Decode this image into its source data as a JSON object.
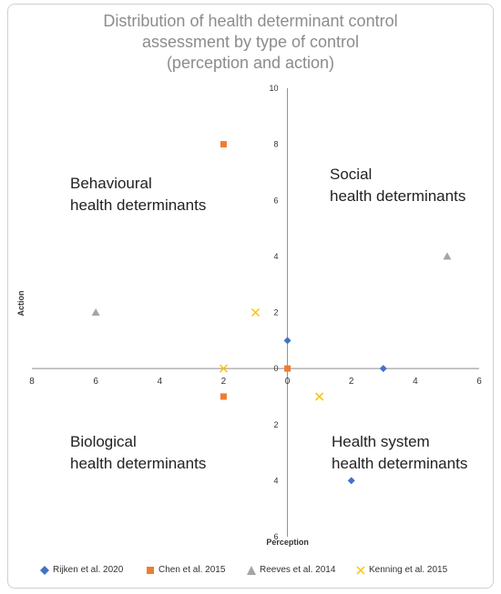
{
  "chart_data": {
    "type": "scatter",
    "title": "Distribution of health determinant control\nassessment by type of control\n(perception and action)",
    "xlabel": "Perception",
    "ylabel": "Action",
    "xlim": [
      -8,
      6
    ],
    "ylim": [
      -6,
      10
    ],
    "x_ticks": [
      -8,
      -6,
      -4,
      -2,
      0,
      2,
      4,
      6
    ],
    "x_tick_labels": [
      "8",
      "6",
      "4",
      "2",
      "0",
      "2",
      "4",
      "6"
    ],
    "y_ticks": [
      -6,
      -4,
      -2,
      0,
      2,
      4,
      6,
      8,
      10
    ],
    "y_tick_labels": [
      "6",
      "4",
      "2",
      "0",
      "2",
      "4",
      "6",
      "8",
      "10"
    ],
    "grid": false,
    "legend_position": "bottom",
    "series": [
      {
        "name": "Rijken et al. 2020",
        "marker": "diamond",
        "color": "#4472c4",
        "points": [
          [
            0,
            1
          ],
          [
            3,
            0
          ],
          [
            2,
            -4
          ]
        ]
      },
      {
        "name": "Chen et al. 2015",
        "marker": "square",
        "color": "#ed7d31",
        "points": [
          [
            -2,
            8
          ],
          [
            0,
            0
          ],
          [
            -2,
            -1
          ]
        ]
      },
      {
        "name": "Reeves et al. 2014",
        "marker": "triangle",
        "color": "#a5a5a5",
        "points": [
          [
            -6,
            2
          ],
          [
            5,
            4
          ]
        ]
      },
      {
        "name": "Kenning et al. 2015",
        "marker": "x",
        "color": "#ffc000",
        "points": [
          [
            -1,
            2
          ],
          [
            -2,
            0
          ],
          [
            1,
            -1
          ]
        ]
      }
    ],
    "annotations": [
      {
        "id": "behavioural",
        "text": "Behavioural\nhealth determinants"
      },
      {
        "id": "social",
        "text": "Social\nhealth determinants"
      },
      {
        "id": "biological",
        "text": "Biological\nhealth determinants"
      },
      {
        "id": "health_system",
        "text": "Health system\nhealth determinants"
      }
    ]
  }
}
